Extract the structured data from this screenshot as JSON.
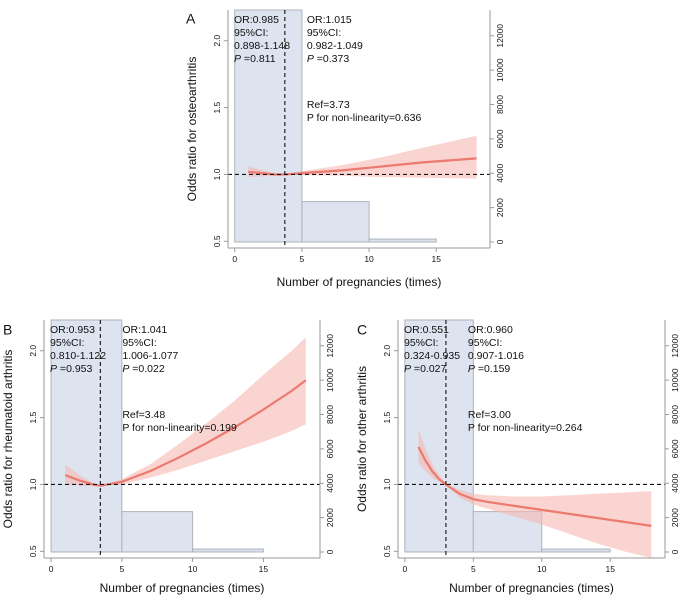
{
  "chart_data": [
    {
      "type": "line",
      "panel": "A",
      "panel_label": "A",
      "title": "",
      "xlabel": "Number of pregnancies (times)",
      "ylabel": "Odds ratio for osteoarthritis",
      "x_ticks": [
        0,
        5,
        10,
        15
      ],
      "y_ticks": [
        0.5,
        1.0,
        1.5,
        2.0
      ],
      "y_tick_labels": [
        "0.5",
        "1.0",
        "1.5",
        "2.0"
      ],
      "y2_ticks": [
        0,
        2000,
        4000,
        6000,
        8000,
        10000,
        12000
      ],
      "xlim": [
        -0.5,
        19
      ],
      "ylim": [
        0.45,
        2.23
      ],
      "y2lim": [
        -350,
        13500
      ],
      "ref_x": 3.73,
      "histogram": [
        {
          "from": 0,
          "to": 5,
          "count": 13500
        },
        {
          "from": 5,
          "to": 10,
          "count": 2350
        },
        {
          "from": 10,
          "to": 15,
          "count": 170
        }
      ],
      "curve": {
        "x": [
          1,
          2,
          3,
          3.73,
          5,
          8,
          11,
          14,
          18
        ],
        "y": [
          1.02,
          1.01,
          1.0,
          1.0,
          1.01,
          1.03,
          1.06,
          1.09,
          1.12
        ],
        "lower": [
          0.98,
          0.985,
          0.99,
          1.0,
          0.995,
          0.99,
          0.98,
          0.975,
          0.97
        ],
        "upper": [
          1.06,
          1.035,
          1.01,
          1.0,
          1.025,
          1.07,
          1.13,
          1.2,
          1.29
        ]
      },
      "annotations": {
        "left": {
          "or": "OR:0.985",
          "ci_label": "95%CI:",
          "ci": "0.898-1.148",
          "p_label": "P",
          "p_value": " =0.811"
        },
        "right": {
          "or": "OR:1.015",
          "ci_label": "95%CI:",
          "ci": "0.982-1.049",
          "p_label": "P",
          "p_value": " =0.373"
        },
        "ref": "Ref=3.73",
        "nonlin": "P for non-linearity=0.636"
      }
    },
    {
      "type": "line",
      "panel": "B",
      "panel_label": "B",
      "title": "",
      "xlabel": "Number of pregnancies (times)",
      "ylabel": "Odds ratio for rheumatoid arthritis",
      "x_ticks": [
        0,
        5,
        10,
        15
      ],
      "y_ticks": [
        0.5,
        1.0,
        1.5,
        2.0
      ],
      "y_tick_labels": [
        "0.5",
        "1.0",
        "1.5",
        "2.0"
      ],
      "y2_ticks": [
        0,
        2000,
        4000,
        6000,
        8000,
        10000,
        12000
      ],
      "xlim": [
        -0.5,
        19
      ],
      "ylim": [
        0.45,
        2.23
      ],
      "y2lim": [
        -350,
        13500
      ],
      "ref_x": 3.48,
      "histogram": [
        {
          "from": 0,
          "to": 5,
          "count": 13500
        },
        {
          "from": 5,
          "to": 10,
          "count": 2350
        },
        {
          "from": 10,
          "to": 15,
          "count": 170
        }
      ],
      "curve": {
        "x": [
          1,
          2,
          3,
          3.48,
          5,
          7,
          9,
          11,
          13,
          15,
          17,
          18
        ],
        "y": [
          1.07,
          1.03,
          1.0,
          0.99,
          1.02,
          1.1,
          1.2,
          1.31,
          1.43,
          1.56,
          1.7,
          1.78
        ],
        "lower": [
          1.0,
          0.99,
          0.985,
          0.99,
          1.0,
          1.05,
          1.11,
          1.18,
          1.25,
          1.32,
          1.4,
          1.45
        ],
        "upper": [
          1.15,
          1.07,
          1.01,
          0.99,
          1.04,
          1.15,
          1.3,
          1.46,
          1.63,
          1.82,
          2.0,
          2.1
        ]
      },
      "annotations": {
        "left": {
          "or": "OR:0.953",
          "ci_label": "95%CI:",
          "ci": "0.810-1.122",
          "p_label": "P",
          "p_value": " =0.953"
        },
        "right": {
          "or": "OR:1.041",
          "ci_label": "95%CI:",
          "ci": "1.006-1.077",
          "p_label": "P",
          "p_value": " =0.022"
        },
        "ref": "Ref=3.48",
        "nonlin": "P for non-linearity=0.199"
      }
    },
    {
      "type": "line",
      "panel": "C",
      "panel_label": "C",
      "title": "",
      "xlabel": "Number of pregnancies (times)",
      "ylabel": "Odds ratio for other arthritis",
      "x_ticks": [
        0,
        5,
        10,
        15
      ],
      "y_ticks": [
        0.5,
        1.0,
        1.5,
        2.0
      ],
      "y_tick_labels": [
        "0.5",
        "1.0",
        "1.5",
        "2.0"
      ],
      "y2_ticks": [
        0,
        2000,
        4000,
        6000,
        8000,
        10000,
        12000
      ],
      "xlim": [
        -0.5,
        19
      ],
      "ylim": [
        0.45,
        2.23
      ],
      "y2lim": [
        -350,
        13500
      ],
      "ref_x": 3.0,
      "histogram": [
        {
          "from": 0,
          "to": 5,
          "count": 13500
        },
        {
          "from": 5,
          "to": 10,
          "count": 2350
        },
        {
          "from": 10,
          "to": 15,
          "count": 170
        }
      ],
      "curve": {
        "x": [
          1,
          1.5,
          2,
          2.5,
          3,
          4,
          5,
          6,
          8,
          10,
          12,
          14,
          16,
          18
        ],
        "y": [
          1.28,
          1.18,
          1.1,
          1.04,
          1.0,
          0.93,
          0.89,
          0.87,
          0.84,
          0.81,
          0.78,
          0.75,
          0.72,
          0.69
        ],
        "lower": [
          1.16,
          1.1,
          1.05,
          1.02,
          1.0,
          0.9,
          0.85,
          0.82,
          0.76,
          0.7,
          0.63,
          0.56,
          0.5,
          0.45
        ],
        "upper": [
          1.41,
          1.27,
          1.15,
          1.07,
          1.0,
          0.96,
          0.93,
          0.92,
          0.91,
          0.91,
          0.92,
          0.93,
          0.94,
          0.95
        ]
      },
      "annotations": {
        "left": {
          "or": "OR:0.551",
          "ci_label": "95%CI:",
          "ci": "0.324-0.935",
          "p_label": "P",
          "p_value": " =0.027"
        },
        "right": {
          "or": "OR:0.960",
          "ci_label": "95%CI:",
          "ci": "0.907-1.016",
          "p_label": "P",
          "p_value": " =0.159"
        },
        "ref": "Ref=3.00",
        "nonlin": "P for non-linearity=0.264"
      }
    }
  ],
  "colors": {
    "hist_fill": "#dde3ef",
    "hist_stroke": "#aeb3bb",
    "curve": "#ec7a6f",
    "band": "#f6b7b0",
    "axis": "#9a9a9a",
    "ref_line": "#111111"
  }
}
